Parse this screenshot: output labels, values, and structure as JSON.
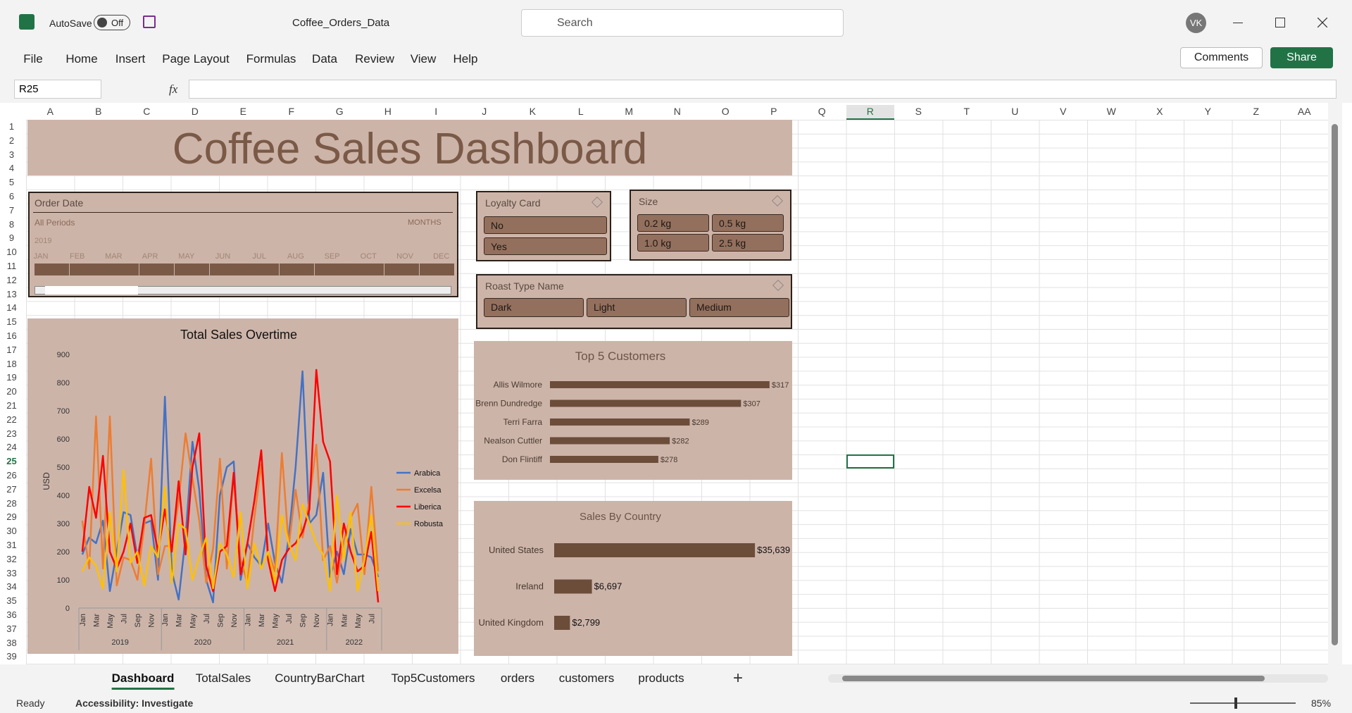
{
  "titlebar": {
    "autosave": "AutoSave",
    "autosave_state": "Off",
    "filename": "Coffee_Orders_Data",
    "search": "Search",
    "user": "VK"
  },
  "ribbon_tabs": [
    "File",
    "Home",
    "Insert",
    "Page Layout",
    "Formulas",
    "Data",
    "Review",
    "View",
    "Help"
  ],
  "ribbon_buttons": {
    "comments": "Comments",
    "share": "Share"
  },
  "formula_bar": {
    "name_box": "R25",
    "fx": "fx"
  },
  "columns": [
    "A",
    "B",
    "C",
    "D",
    "E",
    "F",
    "G",
    "H",
    "I",
    "J",
    "K",
    "L",
    "M",
    "N",
    "O",
    "P",
    "Q",
    "R",
    "S",
    "T",
    "U",
    "V",
    "W",
    "X",
    "Y",
    "Z",
    "AA"
  ],
  "rows": [
    1,
    2,
    3,
    4,
    5,
    6,
    7,
    8,
    9,
    10,
    11,
    12,
    13,
    14,
    15,
    16,
    17,
    18,
    19,
    20,
    21,
    22,
    23,
    24,
    25,
    26,
    27,
    28,
    29,
    30,
    31,
    32,
    33,
    34,
    35,
    36,
    37,
    38,
    39
  ],
  "dashboard": {
    "title": "Coffee Sales Dashboard",
    "timeline": {
      "header": "Order Date",
      "period": "All Periods",
      "level": "MONTHS",
      "year": "2019",
      "months": [
        "JAN",
        "FEB",
        "MAR",
        "APR",
        "MAY",
        "JUN",
        "JUL",
        "AUG",
        "SEP",
        "OCT",
        "NOV",
        "DEC"
      ]
    },
    "slicers": [
      {
        "header": "Loyalty Card",
        "items": [
          "No",
          "Yes"
        ]
      },
      {
        "header": "Size",
        "items": [
          "0.2 kg",
          "0.5 kg",
          "1.0 kg",
          "2.5 kg"
        ]
      },
      {
        "header": "Roast Type Name",
        "items": [
          "Dark",
          "Light",
          "Medium"
        ]
      }
    ]
  },
  "chart_data": [
    {
      "type": "line",
      "title": "Total Sales Overtime",
      "y_label": "USD",
      "categories": [
        "Jan",
        null,
        "Mar",
        null,
        "May",
        null,
        "Jul",
        null,
        "Sep",
        null,
        "Nov",
        null,
        "Jan",
        null,
        "Mar",
        null,
        "May",
        null,
        "Jul",
        null,
        "Sep",
        null,
        "Nov",
        null,
        "Jan",
        null,
        "Mar",
        null,
        "May",
        null,
        "Jul",
        null,
        "Sep",
        null,
        "Nov",
        null,
        "Jan",
        null,
        "Mar",
        null,
        "May",
        null,
        "Jul",
        null
      ],
      "x_groups": [
        "2019",
        "2020",
        "2021",
        "2022"
      ],
      "ylim": [
        0,
        900
      ],
      "yticks": [
        0,
        100,
        200,
        300,
        400,
        500,
        600,
        700,
        800,
        900
      ],
      "legend": "right",
      "series": [
        {
          "name": "Arabica",
          "color": "#4472c4",
          "values": [
            190,
            250,
            230,
            310,
            60,
            200,
            340,
            330,
            180,
            300,
            310,
            100,
            750,
            130,
            30,
            250,
            590,
            420,
            100,
            20,
            400,
            500,
            520,
            100,
            230,
            180,
            150,
            300,
            160,
            90,
            250,
            500,
            840,
            300,
            330,
            480,
            110,
            200,
            120,
            280,
            190,
            190,
            180,
            110
          ]
        },
        {
          "name": "Excelsa",
          "color": "#ed7d31",
          "values": [
            310,
            140,
            680,
            140,
            680,
            80,
            180,
            170,
            100,
            290,
            530,
            120,
            220,
            220,
            380,
            620,
            460,
            310,
            90,
            210,
            530,
            140,
            480,
            170,
            90,
            320,
            510,
            200,
            130,
            550,
            220,
            420,
            250,
            380,
            580,
            170,
            220,
            90,
            240,
            320,
            370,
            120,
            430,
            130
          ]
        },
        {
          "name": "Liberica",
          "color": "#ff0000",
          "values": [
            200,
            430,
            320,
            540,
            200,
            140,
            200,
            300,
            160,
            320,
            330,
            200,
            350,
            200,
            450,
            190,
            500,
            620,
            150,
            60,
            200,
            220,
            480,
            120,
            230,
            380,
            560,
            170,
            60,
            170,
            210,
            230,
            270,
            350,
            845,
            590,
            520,
            120,
            300,
            200,
            130,
            150,
            270,
            20
          ]
        },
        {
          "name": "Robusta",
          "color": "#ffc000",
          "values": [
            130,
            180,
            150,
            70,
            340,
            130,
            490,
            160,
            200,
            80,
            220,
            180,
            430,
            90,
            300,
            280,
            100,
            180,
            250,
            70,
            230,
            190,
            110,
            340,
            70,
            230,
            140,
            200,
            90,
            330,
            230,
            170,
            370,
            300,
            230,
            190,
            60,
            400,
            170,
            340,
            60,
            170,
            330,
            60
          ]
        }
      ]
    },
    {
      "type": "bar",
      "orientation": "horizontal",
      "title": "Top 5 Customers",
      "color": "#6b4d3a",
      "categories": [
        "Allis Wilmore",
        "Brenn Dundredge",
        "Terri Farra",
        "Nealson Cuttler",
        "Don Flintiff"
      ],
      "values": [
        317,
        307,
        289,
        282,
        278
      ],
      "value_labels": [
        "$317",
        "$307",
        "$289",
        "$282",
        "$278"
      ],
      "xlim": [
        240,
        320
      ]
    },
    {
      "type": "bar",
      "orientation": "horizontal",
      "title": "Sales By Country",
      "color": "#6b4d3a",
      "categories": [
        "United States",
        "Ireland",
        "United Kingdom"
      ],
      "values": [
        35639,
        6697,
        2799
      ],
      "value_labels": [
        "$35,639",
        "$6,697",
        "$2,799"
      ],
      "xlim": [
        0,
        36000
      ]
    }
  ],
  "sheet_tabs": [
    "Dashboard",
    "TotalSales",
    "CountryBarChart",
    "Top5Customers",
    "orders",
    "customers",
    "products"
  ],
  "status": {
    "ready": "Ready",
    "accessibility": "Accessibility: Investigate",
    "zoom": "85%"
  }
}
